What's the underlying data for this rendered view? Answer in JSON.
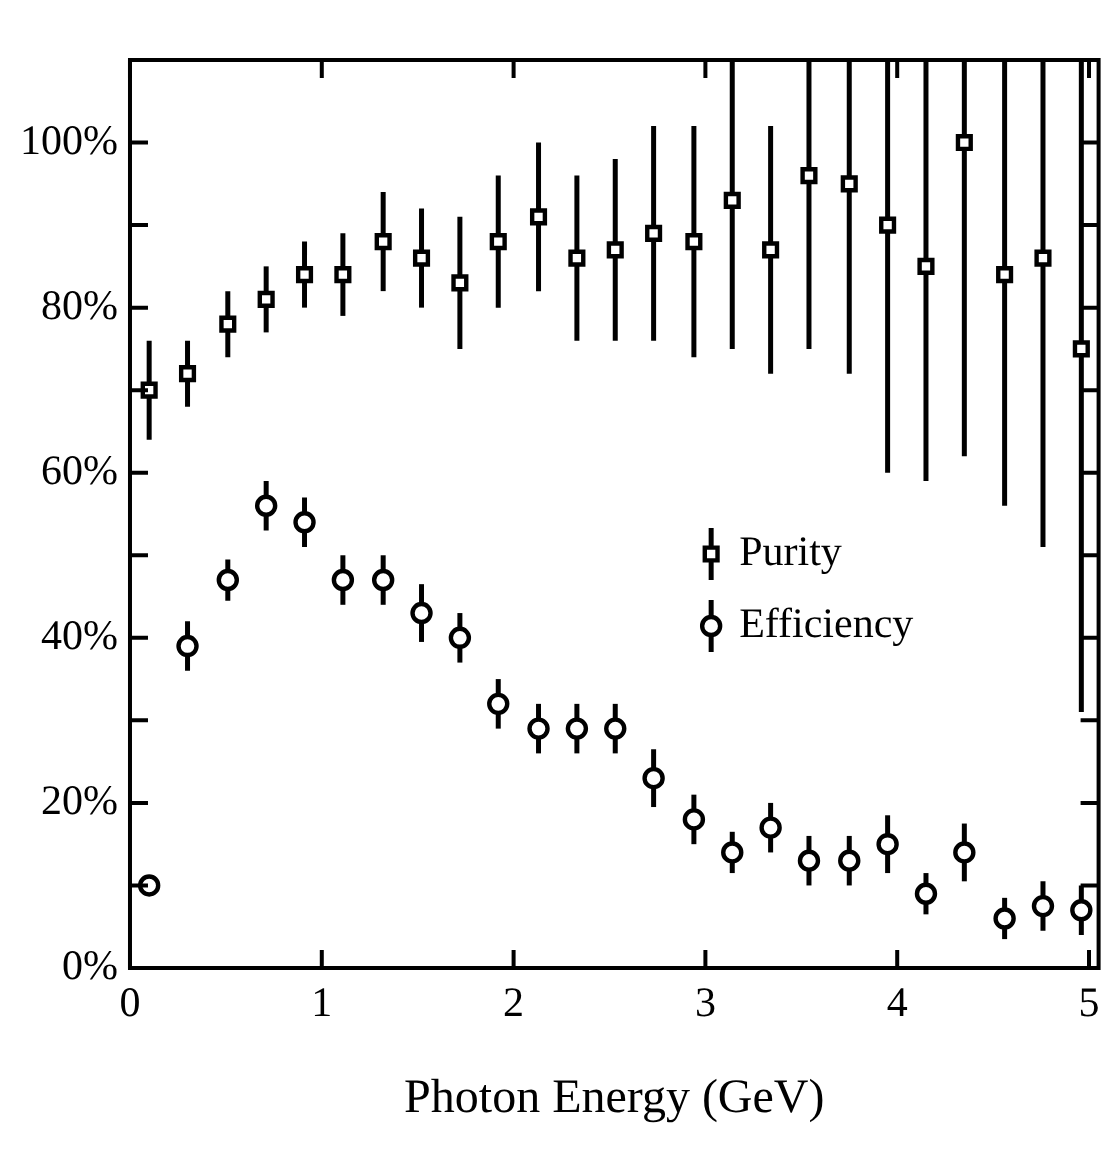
{
  "chart_data": {
    "type": "scatter",
    "xlabel": "Photon Energy (GeV)",
    "x": [
      0.1,
      0.3,
      0.51,
      0.71,
      0.91,
      1.11,
      1.32,
      1.52,
      1.72,
      1.92,
      2.13,
      2.33,
      2.53,
      2.73,
      2.94,
      3.14,
      3.34,
      3.54,
      3.75,
      3.95,
      4.15,
      4.35,
      4.56,
      4.76,
      4.96
    ],
    "series": [
      {
        "name": "Purity",
        "color": "#000000",
        "marker": "square",
        "values": [
          70,
          72,
          78,
          81,
          84,
          84,
          88,
          86,
          83,
          88,
          91,
          86,
          87,
          89,
          88,
          93,
          87,
          96,
          95,
          90,
          85,
          100,
          84,
          86,
          75
        ],
        "errors": [
          6,
          4,
          4,
          4,
          4,
          5,
          6,
          6,
          8,
          8,
          9,
          10,
          11,
          13,
          14,
          [
            75,
            110
          ],
          15,
          [
            75,
            110
          ],
          [
            72,
            110
          ],
          [
            60,
            110
          ],
          [
            59,
            110
          ],
          [
            62,
            110
          ],
          [
            56,
            110
          ],
          [
            51,
            110
          ],
          [
            31,
            110
          ]
        ]
      },
      {
        "name": "Efficiency",
        "color": "#000000",
        "marker": "circle",
        "values": [
          10,
          39,
          47,
          56,
          54,
          47,
          47,
          43,
          40,
          32,
          29,
          29,
          29,
          23,
          18,
          14,
          17,
          13,
          13,
          15,
          9,
          14,
          6,
          7.5,
          7
        ],
        "errors": [
          null,
          3,
          2.5,
          3,
          3,
          3,
          3,
          3.5,
          3,
          3,
          3,
          3,
          3,
          3.5,
          3,
          2.5,
          3,
          3,
          3,
          3.5,
          2.5,
          3.5,
          2.5,
          3,
          3
        ]
      }
    ],
    "xlim": [
      0,
      5.05
    ],
    "xticks": [
      0,
      1,
      2,
      3,
      4,
      5
    ],
    "ylim": [
      0,
      110
    ],
    "yticks": [
      {
        "value": 0,
        "label": "0%"
      },
      {
        "value": 10,
        "label": null
      },
      {
        "value": 20,
        "label": "20%"
      },
      {
        "value": 30,
        "label": null
      },
      {
        "value": 40,
        "label": "40%"
      },
      {
        "value": 50,
        "label": null
      },
      {
        "value": 60,
        "label": "60%"
      },
      {
        "value": 70,
        "label": null
      },
      {
        "value": 80,
        "label": "80%"
      },
      {
        "value": 90,
        "label": null
      },
      {
        "value": 100,
        "label": "100%"
      }
    ],
    "grid": false,
    "legend": "right"
  }
}
